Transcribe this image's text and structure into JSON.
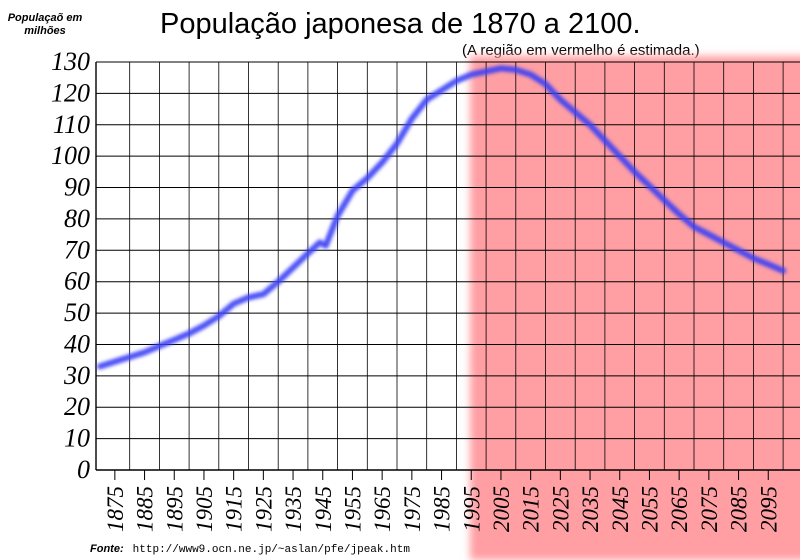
{
  "chart_data": {
    "type": "line",
    "title": "População japonesa de 1870 a 2100.",
    "subtitle": "(A região em vermelho é estimada.)",
    "ylabel": "Populaçaõ em milhões",
    "xlabel": "",
    "x_ticks": [
      "1875",
      "1885",
      "1895",
      "1905",
      "1915",
      "1925",
      "1935",
      "1945",
      "1955",
      "1965",
      "1975",
      "1985",
      "1995",
      "2005",
      "2015",
      "2025",
      "2035",
      "2045",
      "2055",
      "2065",
      "2075",
      "2085",
      "2095"
    ],
    "y_ticks": [
      "0",
      "10",
      "20",
      "30",
      "40",
      "50",
      "60",
      "70",
      "80",
      "90",
      "100",
      "110",
      "120",
      "130"
    ],
    "xlim": [
      1870,
      2100
    ],
    "ylim": [
      0,
      130
    ],
    "grid": true,
    "shaded_region": {
      "from": 2000,
      "to": 2100,
      "color": "#ff9ea3"
    },
    "series": [
      {
        "color": "#3b3ff5",
        "x": [
          1870,
          1875,
          1880,
          1885,
          1890,
          1895,
          1900,
          1905,
          1910,
          1915,
          1920,
          1925,
          1930,
          1935,
          1940,
          1944,
          1946,
          1950,
          1955,
          1960,
          1965,
          1970,
          1975,
          1980,
          1985,
          1990,
          1995,
          2000,
          2005,
          2010,
          2015,
          2020,
          2025,
          2030,
          2035,
          2040,
          2045,
          2050,
          2055,
          2060,
          2065,
          2070,
          2075,
          2080,
          2085,
          2090,
          2095,
          2100
        ],
        "y": [
          33,
          34.5,
          36,
          37.5,
          39.5,
          41.5,
          43.5,
          46,
          49,
          53,
          55,
          56,
          60,
          64.5,
          69,
          72.5,
          71.5,
          81,
          89,
          93,
          98,
          104,
          112,
          118,
          121,
          124,
          126,
          127,
          128,
          127.5,
          126,
          123,
          118,
          114,
          110,
          105,
          100,
          95,
          90.5,
          86,
          81.5,
          77.5,
          75,
          72.5,
          70,
          67.5,
          65.5,
          63.5
        ]
      }
    ]
  },
  "source": {
    "label": "Fonte:",
    "url": "http://www9.ocn.ne.jp/~aslan/pfe/jpeak.htm"
  }
}
